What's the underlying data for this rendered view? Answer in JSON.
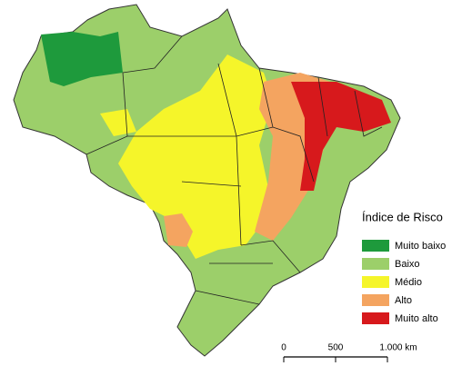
{
  "legend": {
    "title": "Índice de Risco",
    "items": [
      {
        "label": "Muito baixo",
        "color": "#1e9a3c"
      },
      {
        "label": "Baixo",
        "color": "#9ccf6a"
      },
      {
        "label": "Médio",
        "color": "#f5f52a"
      },
      {
        "label": "Alto",
        "color": "#f4a460"
      },
      {
        "label": "Muito alto",
        "color": "#d7191c"
      }
    ]
  },
  "scale_bar": {
    "labels": [
      "0",
      "500",
      "1.000 km"
    ]
  }
}
